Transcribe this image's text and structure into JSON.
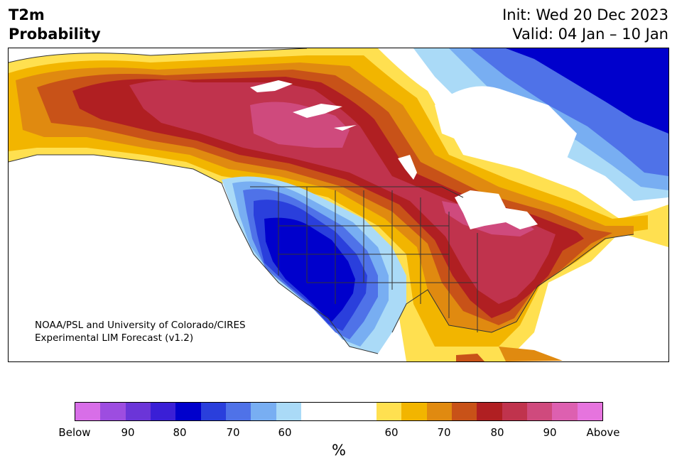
{
  "title": {
    "left_line1": "T2m",
    "left_line2": "Probability",
    "init": "Init: Wed 20 Dec 2023",
    "valid": "Valid: 04 Jan – 10 Jan"
  },
  "credit": {
    "line1": "NOAA/PSL and University of Colorado/CIRES",
    "line2": "Experimental LIM Forecast (v1.2)"
  },
  "colorbar": {
    "colors": [
      "#d86ee8",
      "#9d4de0",
      "#6b35d8",
      "#3a1fd6",
      "#0000cc",
      "#2a3fdc",
      "#4f72e8",
      "#78aef2",
      "#aadaf7",
      "#ffffff",
      "#ffe050",
      "#f2b500",
      "#e08a10",
      "#c85218",
      "#b01f22",
      "#c0334d",
      "#cf4a7d",
      "#dd60b0",
      "#e674de"
    ],
    "tick_labels": [
      "Below",
      "90",
      "80",
      "70",
      "60",
      "60",
      "70",
      "80",
      "90",
      "Above"
    ],
    "units_label": "%"
  },
  "map_layers": {
    "ocean": "#ffffff",
    "outline": "#333333",
    "lakes": "#ffffff"
  }
}
